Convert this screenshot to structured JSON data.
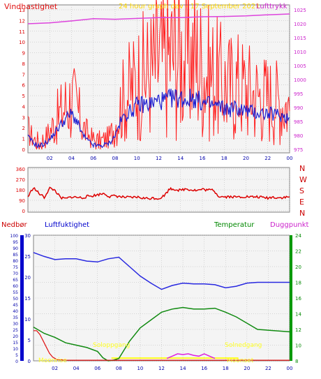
{
  "title": "24 hour graph dav - 17 September 2021",
  "colors": {
    "background": "#ffffff",
    "panel_bg": "#f4f4f4",
    "grid": "#b4b4b4",
    "wind_avg": "#2020d0",
    "wind_gust": "#ff2020",
    "pressure": "#dd44dd",
    "direction": "#dd0000",
    "humidity": "#2828e0",
    "temperature": "#108a10",
    "dewpoint": "#dd22dd",
    "precip": "#e01010",
    "sun": "#ffff22",
    "precip_axis": "#0000cc",
    "temp_axis": "#009900"
  },
  "top_panel": {
    "left_label": "Vindhastighet",
    "right_label": "Lufttrykk"
  },
  "direction_panel": {
    "compass": [
      "N",
      "W",
      "S",
      "E",
      "N"
    ]
  },
  "bottom_panel": {
    "label_precip": "Nedbør",
    "label_humidity": "Luftfuktighet",
    "label_temperature": "Temperatur",
    "label_dewpoint": "Duggpunkt",
    "label_sunrise": "Soloppgang",
    "label_sunset": "Solnedgang",
    "label_moonrise": "Moonrise",
    "label_moonset": "Moonset"
  },
  "chart_data": [
    {
      "type": "line",
      "x_ticks": [
        "02",
        "04",
        "06",
        "08",
        "10",
        "12",
        "14",
        "16",
        "18",
        "20",
        "22",
        "00"
      ],
      "xlim": [
        0,
        24
      ],
      "left_axis": {
        "label": "Vindhastighet",
        "ylim": [
          0,
          13
        ],
        "ticks": [
          0,
          1,
          2,
          3,
          4,
          5,
          6,
          7,
          8,
          9,
          10,
          11,
          12,
          13
        ]
      },
      "right_axis": {
        "label": "Lufttrykk",
        "ylim": [
          975,
          1025
        ],
        "ticks": [
          975,
          980,
          985,
          990,
          995,
          1000,
          1005,
          1010,
          1015,
          1020,
          1025
        ]
      },
      "series": [
        {
          "name": "wind_avg",
          "axis": "left",
          "x": [
            0,
            0.5,
            1,
            1.5,
            2,
            2.5,
            3,
            3.5,
            4,
            4.5,
            5,
            5.5,
            6,
            6.5,
            7,
            7.5,
            8,
            8.5,
            9,
            9.5,
            10,
            10.5,
            11,
            11.5,
            12,
            12.5,
            13,
            13.5,
            14,
            14.5,
            15,
            15.5,
            16,
            16.5,
            17,
            17.5,
            18,
            18.5,
            19,
            19.5,
            20,
            20.5,
            21,
            21.5,
            22,
            22.5,
            23,
            23.5,
            24
          ],
          "y": [
            1.2,
            0.6,
            0.3,
            0.5,
            0.9,
            1.6,
            2.3,
            2.9,
            3.3,
            2.6,
            1.4,
            0.8,
            0.4,
            0.3,
            0.4,
            0.6,
            1.3,
            2.6,
            3.3,
            3.6,
            4.1,
            4.2,
            4.2,
            4.3,
            4.6,
            4.5,
            4.7,
            4.8,
            4.8,
            4.6,
            4.8,
            4.7,
            4.3,
            4.2,
            4.1,
            4.0,
            3.8,
            3.7,
            3.9,
            3.7,
            3.6,
            3.5,
            3.4,
            3.4,
            3.3,
            3.3,
            3.2,
            3.1,
            2.9
          ]
        },
        {
          "name": "wind_gust",
          "axis": "left",
          "x": [
            0,
            0.5,
            1,
            1.5,
            2,
            2.5,
            3,
            3.5,
            4,
            4.5,
            5,
            5.5,
            6,
            6.5,
            7,
            7.5,
            8,
            8.5,
            9,
            9.5,
            10,
            10.5,
            11,
            11.5,
            12,
            12.5,
            13,
            13.5,
            14,
            14.5,
            15,
            15.5,
            16,
            16.5,
            17,
            17.5,
            18,
            18.5,
            19,
            19.5,
            20,
            20.5,
            21,
            21.5,
            22,
            22.5,
            23,
            23.5,
            24
          ],
          "y": [
            1.8,
            1.0,
            0.6,
            1.0,
            1.7,
            2.6,
            3.4,
            4.2,
            4.7,
            3.8,
            2.2,
            1.4,
            0.9,
            0.7,
            0.9,
            1.2,
            2.3,
            4.1,
            5.2,
            5.6,
            6.5,
            6.8,
            7.2,
            7.6,
            8.4,
            8.1,
            8.9,
            9.2,
            9.0,
            8.4,
            8.8,
            8.6,
            7.8,
            7.2,
            6.9,
            6.4,
            6.2,
            5.9,
            6.3,
            5.9,
            5.7,
            5.4,
            5.2,
            5.0,
            4.9,
            4.7,
            4.6,
            4.4,
            4.0
          ]
        },
        {
          "name": "pressure",
          "axis": "right",
          "x": [
            0,
            2,
            4,
            6,
            8,
            10,
            12,
            14,
            16,
            18,
            20,
            22,
            24
          ],
          "y": [
            1020,
            1020.3,
            1021,
            1021.8,
            1021.6,
            1021.9,
            1022.2,
            1022.2,
            1022.5,
            1022.6,
            1022.8,
            1023.2,
            1023.5
          ]
        }
      ]
    },
    {
      "type": "line",
      "x_ticks": [
        "02",
        "04",
        "06",
        "08",
        "10",
        "12",
        "14",
        "16",
        "18",
        "20",
        "22",
        "00"
      ],
      "xlim": [
        0,
        24
      ],
      "ylim": [
        0,
        360
      ],
      "y_ticks": [
        0,
        90,
        180,
        270,
        360
      ],
      "series": [
        {
          "name": "direction",
          "x": [
            0,
            0.5,
            1,
            1.5,
            2,
            2.5,
            3,
            3.5,
            4,
            4.5,
            5,
            5.5,
            6,
            6.5,
            7,
            7.5,
            8,
            8.5,
            9,
            9.5,
            10,
            10.5,
            11,
            11.5,
            12,
            12.5,
            13,
            13.5,
            14,
            14.5,
            15,
            15.5,
            16,
            16.5,
            17,
            17.5,
            18,
            18.5,
            19,
            19.5,
            20,
            20.5,
            21,
            21.5,
            22,
            22.5,
            23,
            23.5,
            24
          ],
          "y": [
            120,
            200,
            150,
            115,
            195,
            175,
            110,
            105,
            120,
            115,
            112,
            125,
            130,
            140,
            150,
            120,
            130,
            120,
            115,
            113,
            118,
            110,
            105,
            110,
            105,
            130,
            190,
            185,
            175,
            190,
            180,
            175,
            185,
            178,
            180,
            125,
            120,
            122,
            118,
            120,
            122,
            118,
            120,
            115,
            110,
            118,
            112,
            115,
            118
          ]
        }
      ]
    },
    {
      "type": "line",
      "x_ticks": [
        "02",
        "04",
        "06",
        "08",
        "10",
        "12",
        "14",
        "16",
        "18",
        "20",
        "22",
        "00"
      ],
      "xlim": [
        0,
        24
      ],
      "precip_axis": {
        "label": "Nedbør",
        "ylim": [
          0,
          100
        ],
        "ticks": [
          0,
          5,
          10,
          15,
          20,
          25,
          30,
          35,
          40,
          45,
          50,
          55,
          60,
          65,
          70,
          75,
          80,
          85,
          90,
          95,
          100
        ]
      },
      "humidity_axis": {
        "label": "Luftfuktighet",
        "ylim": [
          0,
          30
        ],
        "ticks": [
          0,
          5,
          10,
          15,
          20,
          25,
          30
        ]
      },
      "temp_axis": {
        "label": "Temperatur",
        "ylim": [
          8,
          24
        ],
        "ticks": [
          8,
          10,
          12,
          14,
          16,
          18,
          20,
          22,
          24
        ]
      },
      "series": [
        {
          "name": "humidity",
          "axis": "temp",
          "x": [
            0,
            1,
            2,
            3,
            4,
            5,
            6,
            7,
            8,
            9,
            10,
            11,
            12,
            13,
            14,
            15,
            16,
            17,
            18,
            19,
            20,
            21,
            22,
            23,
            24
          ],
          "y": [
            21.8,
            21.3,
            20.9,
            21.0,
            21.0,
            20.7,
            20.6,
            21.0,
            21.2,
            20.0,
            18.8,
            17.9,
            17.1,
            17.6,
            17.9,
            17.8,
            17.8,
            17.7,
            17.3,
            17.5,
            17.9,
            18.0,
            18.0,
            18.0,
            18.0
          ]
        },
        {
          "name": "temperature",
          "axis": "temp",
          "x": [
            0,
            1,
            2,
            3,
            4,
            5,
            6,
            6.5,
            7,
            7.5,
            8,
            9,
            10,
            11,
            12,
            13,
            14,
            15,
            16,
            17,
            18,
            19,
            20,
            21,
            22,
            23,
            24
          ],
          "y": [
            12.3,
            11.5,
            11.0,
            10.3,
            10.0,
            9.7,
            9.2,
            8.4,
            8.0,
            8.1,
            8.3,
            10.5,
            12.2,
            13.2,
            14.2,
            14.6,
            14.8,
            14.6,
            14.6,
            14.7,
            14.2,
            13.6,
            12.8,
            12.0,
            11.9,
            11.8,
            11.7
          ]
        },
        {
          "name": "dewpoint",
          "axis": "temp",
          "x": [
            12.5,
            13,
            13.5,
            14,
            14.5,
            15,
            15.5,
            16,
            16.5,
            17
          ],
          "y": [
            8.3,
            8.6,
            8.9,
            8.8,
            8.9,
            8.7,
            8.6,
            8.9,
            8.6,
            8.3
          ]
        },
        {
          "name": "precip",
          "axis": "precip",
          "x": [
            0,
            0.3,
            0.6,
            0.9,
            1.2,
            1.5,
            1.8,
            2.2,
            3,
            5,
            7,
            9,
            12,
            15,
            18,
            21,
            24
          ],
          "y": [
            24,
            24,
            21,
            16,
            11,
            6,
            3,
            1,
            0.5,
            0.5,
            0.5,
            0.5,
            0.5,
            0.5,
            0.5,
            0.5,
            0.5
          ]
        }
      ]
    }
  ]
}
